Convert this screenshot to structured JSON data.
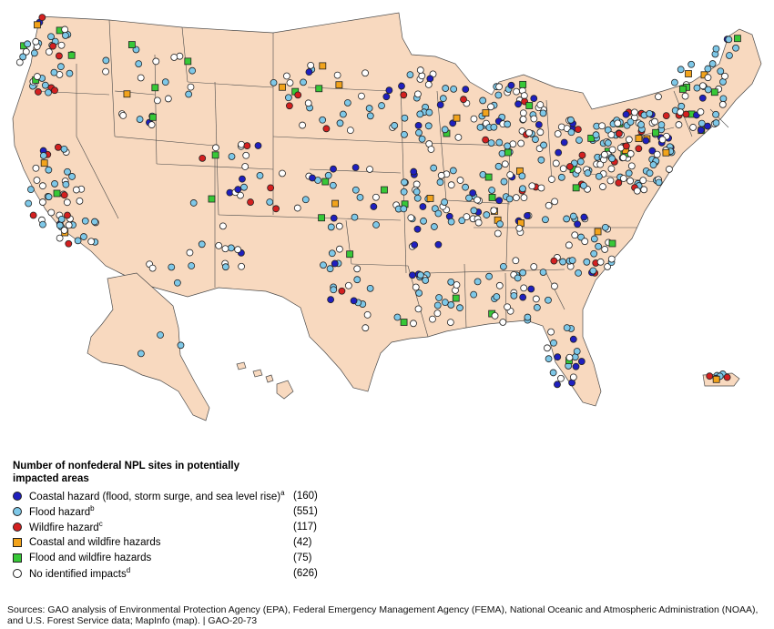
{
  "legend": {
    "title": "Number of nonfederal NPL sites in potentially impacted areas",
    "items": [
      {
        "label": "Coastal hazard (flood, storm surge, and sea level rise)",
        "note": "a",
        "count": "(160)",
        "color": "#1f1fbf",
        "shape": "circle"
      },
      {
        "label": "Flood hazard",
        "note": "b",
        "count": "(551)",
        "color": "#7ec8e8",
        "shape": "circle"
      },
      {
        "label": "Wildfire hazard",
        "note": "c",
        "count": "(117)",
        "color": "#d42020",
        "shape": "circle"
      },
      {
        "label": "Coastal and wildfire hazards",
        "note": "",
        "count": "(42)",
        "color": "#f2a31b",
        "shape": "square"
      },
      {
        "label": "Flood and wildfire hazards",
        "note": "",
        "count": "(75)",
        "color": "#37c837",
        "shape": "square"
      },
      {
        "label": "No identified impacts",
        "note": "d",
        "count": "(626)",
        "color": "#ffffff",
        "shape": "circle"
      }
    ]
  },
  "sources": "Sources: GAO analysis of Environmental Protection Agency (EPA), Federal Emergency Management Agency (FEMA), National Oceanic and Atmospheric Administration (NOAA), and U.S. Forest Service data; MapInfo (map).  |  GAO-20-73"
}
